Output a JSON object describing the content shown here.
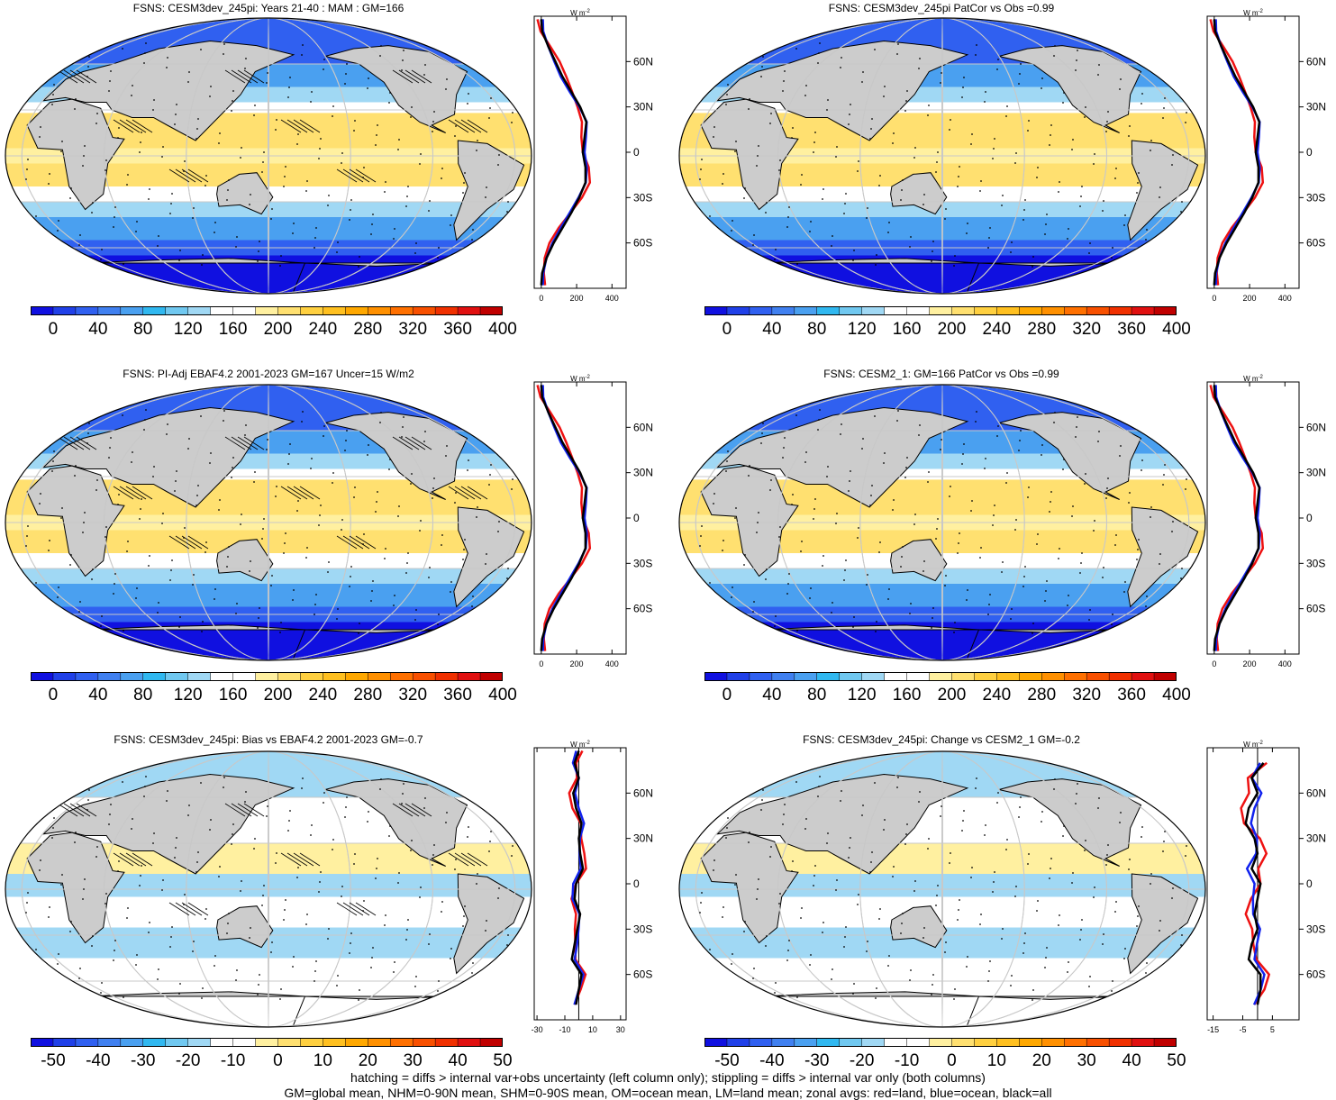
{
  "panels": [
    {
      "id": "p1",
      "title": "FSNS: CESM3dev_245pi: Years 21-40 : MAM : GM=166",
      "kind": "abs",
      "hatch": true,
      "stipple": true
    },
    {
      "id": "p2",
      "title": "FSNS: CESM3dev_245pi PatCor vs Obs =0.99",
      "kind": "abs",
      "hatch": false,
      "stipple": true
    },
    {
      "id": "p3",
      "title": "FSNS: PI-Adj EBAF4.2 2001-2023 GM=167 Uncer=15 W/m2",
      "kind": "abs",
      "hatch": true,
      "stipple": true
    },
    {
      "id": "p4",
      "title": "FSNS: CESM2_1: GM=166 PatCor vs Obs =0.99",
      "kind": "abs",
      "hatch": false,
      "stipple": true
    },
    {
      "id": "p5",
      "title": "FSNS: CESM3dev_245pi: Bias vs EBAF4.2 2001-2023 GM=-0.7",
      "kind": "diff",
      "hatch": true,
      "stipple": true
    },
    {
      "id": "p6",
      "title": "FSNS: CESM3dev_245pi: Change vs CESM2_1 GM=-0.2",
      "kind": "diff",
      "hatch": false,
      "stipple": true
    }
  ],
  "colorbars": {
    "abs": {
      "labels": [
        "0",
        "40",
        "80",
        "120",
        "160",
        "200",
        "240",
        "280",
        "320",
        "360",
        "400"
      ],
      "colors": [
        "#1010e0",
        "#2040e8",
        "#3060f0",
        "#4080f0",
        "#4aa0f0",
        "#30b8f0",
        "#70c8f0",
        "#a0d8f4",
        "#ffffff",
        "#ffffff",
        "#fff0a0",
        "#ffe070",
        "#ffd040",
        "#ffc020",
        "#ffa800",
        "#ff9000",
        "#ff7000",
        "#f85000",
        "#f03000",
        "#e01010",
        "#c00000"
      ]
    },
    "diff": {
      "labels": [
        "-50",
        "-40",
        "-30",
        "-20",
        "-10",
        "0",
        "10",
        "20",
        "30",
        "40",
        "50"
      ],
      "colors": [
        "#1010e0",
        "#2040e8",
        "#3060f0",
        "#4080f0",
        "#4aa0f0",
        "#30b8f0",
        "#70c8f0",
        "#a0d8f4",
        "#ffffff",
        "#ffffff",
        "#fff0a0",
        "#ffe070",
        "#ffd040",
        "#ffc020",
        "#ffa800",
        "#ff9000",
        "#ff7000",
        "#f85000",
        "#f03000",
        "#e01010",
        "#c00000"
      ]
    }
  },
  "zonal": {
    "unit": "W m",
    "unit_exp": "-2",
    "lat_labels": [
      "60N",
      "30N",
      "0",
      "30S",
      "60S"
    ],
    "lat_values": [
      60,
      30,
      0,
      -30,
      -60
    ],
    "abs_xticks": [
      "0",
      "200",
      "400"
    ],
    "abs_xvalues": [
      0,
      200,
      400
    ],
    "abs_xrange": [
      -40,
      480
    ],
    "diff_left_xticks": [
      "-30",
      "-10",
      "10",
      "30"
    ],
    "diff_left_xvalues": [
      -30,
      -10,
      10,
      30
    ],
    "diff_left_xrange": [
      -32,
      34
    ],
    "diff_right_xticks": [
      "-15",
      "-5",
      "5"
    ],
    "diff_right_xvalues": [
      -15,
      -5,
      5
    ],
    "diff_right_xrange": [
      -17,
      14
    ],
    "abs_profile": [
      [
        88,
        0
      ],
      [
        80,
        5
      ],
      [
        70,
        40
      ],
      [
        60,
        80
      ],
      [
        50,
        120
      ],
      [
        40,
        170
      ],
      [
        30,
        220
      ],
      [
        20,
        255
      ],
      [
        10,
        245
      ],
      [
        0,
        235
      ],
      [
        -10,
        250
      ],
      [
        -20,
        250
      ],
      [
        -30,
        215
      ],
      [
        -40,
        170
      ],
      [
        -50,
        120
      ],
      [
        -60,
        70
      ],
      [
        -70,
        30
      ],
      [
        -80,
        5
      ],
      [
        -88,
        0
      ]
    ],
    "bias_profile": [
      [
        88,
        0
      ],
      [
        80,
        -3
      ],
      [
        70,
        0
      ],
      [
        60,
        -4
      ],
      [
        50,
        -2
      ],
      [
        40,
        2
      ],
      [
        30,
        0
      ],
      [
        20,
        1
      ],
      [
        10,
        3
      ],
      [
        0,
        -2
      ],
      [
        -10,
        -3
      ],
      [
        -20,
        1
      ],
      [
        -30,
        -1
      ],
      [
        -40,
        -3
      ],
      [
        -50,
        -5
      ],
      [
        -60,
        2
      ],
      [
        -70,
        0
      ],
      [
        -80,
        -2
      ]
    ],
    "change_profile": [
      [
        80,
        2
      ],
      [
        70,
        -2
      ],
      [
        60,
        0
      ],
      [
        50,
        -3
      ],
      [
        40,
        -4
      ],
      [
        30,
        -1
      ],
      [
        20,
        0
      ],
      [
        10,
        -2
      ],
      [
        0,
        1
      ],
      [
        -10,
        0
      ],
      [
        -20,
        -1
      ],
      [
        -30,
        0
      ],
      [
        -40,
        -2
      ],
      [
        -50,
        -3
      ],
      [
        -60,
        1
      ],
      [
        -70,
        1
      ],
      [
        -80,
        0
      ]
    ]
  },
  "footer": {
    "line1": "hatching = diffs > internal var+obs uncertainty (left column only); stippling = diffs > internal var only (both columns)",
    "line2": "GM=global mean, NHM=0-90N mean, SHM=0-90S mean, OM=ocean mean, LM=land mean; zonal avgs: red=land, blue=ocean, black=all"
  },
  "colors": {
    "land_series": "#ee1111",
    "ocean_series": "#1122ee",
    "all_series": "#000000",
    "land_fill": "#cccccc"
  }
}
